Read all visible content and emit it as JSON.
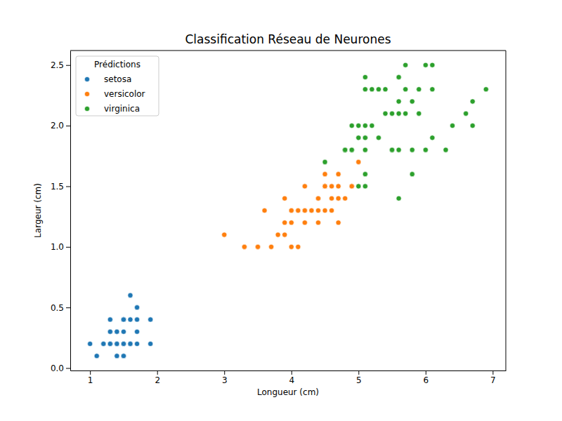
{
  "chart_data": {
    "type": "scatter",
    "title": "Classification Réseau de Neurones",
    "x_label": "Longueur (cm)",
    "y_label": "Largeur (cm)",
    "legend_title": "Prédictions",
    "legend": "upper left",
    "grid": false,
    "marker": "circle",
    "xlim": [
      0.705,
      7.195
    ],
    "ylim": [
      -0.02,
      2.62
    ],
    "xticks": [
      1,
      2,
      3,
      4,
      5,
      6,
      7
    ],
    "yticks": [
      {
        "value": 0,
        "label": "0.0"
      },
      {
        "value": 0.5,
        "label": "0.5"
      },
      {
        "value": 1,
        "label": "1.0"
      },
      {
        "value": 1.5,
        "label": "1.5"
      },
      {
        "value": 2,
        "label": "2.0"
      },
      {
        "value": 2.5,
        "label": "2.5"
      }
    ],
    "series": [
      {
        "name": "setosa",
        "color": "#1f77b4",
        "x": [
          1.4,
          1.4,
          1.3,
          1.5,
          1.4,
          1.7,
          1.4,
          1.5,
          1.4,
          1.5,
          1.5,
          1.6,
          1.4,
          1.1,
          1.2,
          1.5,
          1.3,
          1.4,
          1.7,
          1.5,
          1.7,
          1.5,
          1.0,
          1.7,
          1.9,
          1.6,
          1.6,
          1.5,
          1.4,
          1.6,
          1.6,
          1.5,
          1.5,
          1.4,
          1.5,
          1.2,
          1.3,
          1.4,
          1.3,
          1.5,
          1.3,
          1.3,
          1.3,
          1.6,
          1.9,
          1.4,
          1.6,
          1.4,
          1.5,
          1.4
        ],
        "values": [
          0.2,
          0.2,
          0.2,
          0.2,
          0.2,
          0.4,
          0.3,
          0.2,
          0.2,
          0.1,
          0.2,
          0.2,
          0.1,
          0.1,
          0.2,
          0.4,
          0.4,
          0.3,
          0.3,
          0.3,
          0.2,
          0.4,
          0.2,
          0.5,
          0.2,
          0.2,
          0.4,
          0.2,
          0.2,
          0.2,
          0.2,
          0.4,
          0.1,
          0.2,
          0.2,
          0.2,
          0.2,
          0.1,
          0.2,
          0.2,
          0.3,
          0.3,
          0.2,
          0.6,
          0.4,
          0.3,
          0.2,
          0.2,
          0.2,
          0.2
        ]
      },
      {
        "name": "versicolor",
        "color": "#ff7f0e",
        "x": [
          4.7,
          4.5,
          4.9,
          4.0,
          4.6,
          4.5,
          4.7,
          3.3,
          4.6,
          3.9,
          3.5,
          4.2,
          4.0,
          4.7,
          3.6,
          4.4,
          4.5,
          4.1,
          4.5,
          3.9,
          4.0,
          4.9,
          4.7,
          4.3,
          4.4,
          4.8,
          5.0,
          4.5,
          3.5,
          3.8,
          3.7,
          3.9,
          4.5,
          4.5,
          4.7,
          4.4,
          4.1,
          4.0,
          4.4,
          4.6,
          4.0,
          3.3,
          4.2,
          4.2,
          4.2,
          4.3,
          3.0,
          4.1
        ],
        "values": [
          1.4,
          1.5,
          1.5,
          1.3,
          1.5,
          1.3,
          1.6,
          1.0,
          1.3,
          1.4,
          1.0,
          1.5,
          1.0,
          1.4,
          1.3,
          1.4,
          1.5,
          1.0,
          1.5,
          1.1,
          1.3,
          1.5,
          1.2,
          1.3,
          1.4,
          1.4,
          1.7,
          1.5,
          1.0,
          1.1,
          1.0,
          1.2,
          1.5,
          1.6,
          1.5,
          1.3,
          1.3,
          1.3,
          1.2,
          1.4,
          1.2,
          1.0,
          1.3,
          1.2,
          1.3,
          1.3,
          1.1,
          1.3
        ]
      },
      {
        "name": "virginica",
        "color": "#2ca02c",
        "x": [
          4.8,
          5.1,
          6.0,
          5.1,
          5.9,
          5.6,
          5.8,
          6.6,
          4.5,
          6.3,
          5.8,
          6.1,
          5.1,
          5.3,
          5.5,
          5.0,
          5.1,
          5.3,
          5.5,
          6.7,
          6.9,
          5.0,
          5.7,
          4.9,
          6.7,
          4.9,
          5.7,
          6.0,
          4.8,
          4.9,
          5.6,
          5.8,
          6.1,
          6.4,
          5.6,
          5.1,
          5.6,
          6.1,
          5.6,
          5.5,
          4.8,
          5.4,
          5.6,
          5.1,
          5.1,
          5.9,
          5.7,
          5.2,
          5.0,
          5.2,
          5.4,
          5.1
        ],
        "values": [
          1.8,
          1.6,
          2.5,
          1.9,
          2.1,
          1.8,
          2.2,
          2.1,
          1.7,
          1.8,
          1.8,
          2.5,
          2.0,
          1.9,
          2.1,
          2.0,
          2.4,
          2.3,
          1.8,
          2.2,
          2.3,
          1.5,
          2.3,
          2.0,
          2.0,
          1.8,
          2.1,
          1.8,
          1.8,
          1.8,
          2.1,
          1.6,
          1.9,
          2.0,
          2.2,
          1.5,
          1.4,
          2.3,
          2.4,
          1.8,
          1.8,
          2.1,
          2.4,
          2.3,
          1.9,
          2.3,
          2.5,
          2.3,
          1.9,
          2.0,
          2.3,
          1.8
        ]
      }
    ]
  }
}
